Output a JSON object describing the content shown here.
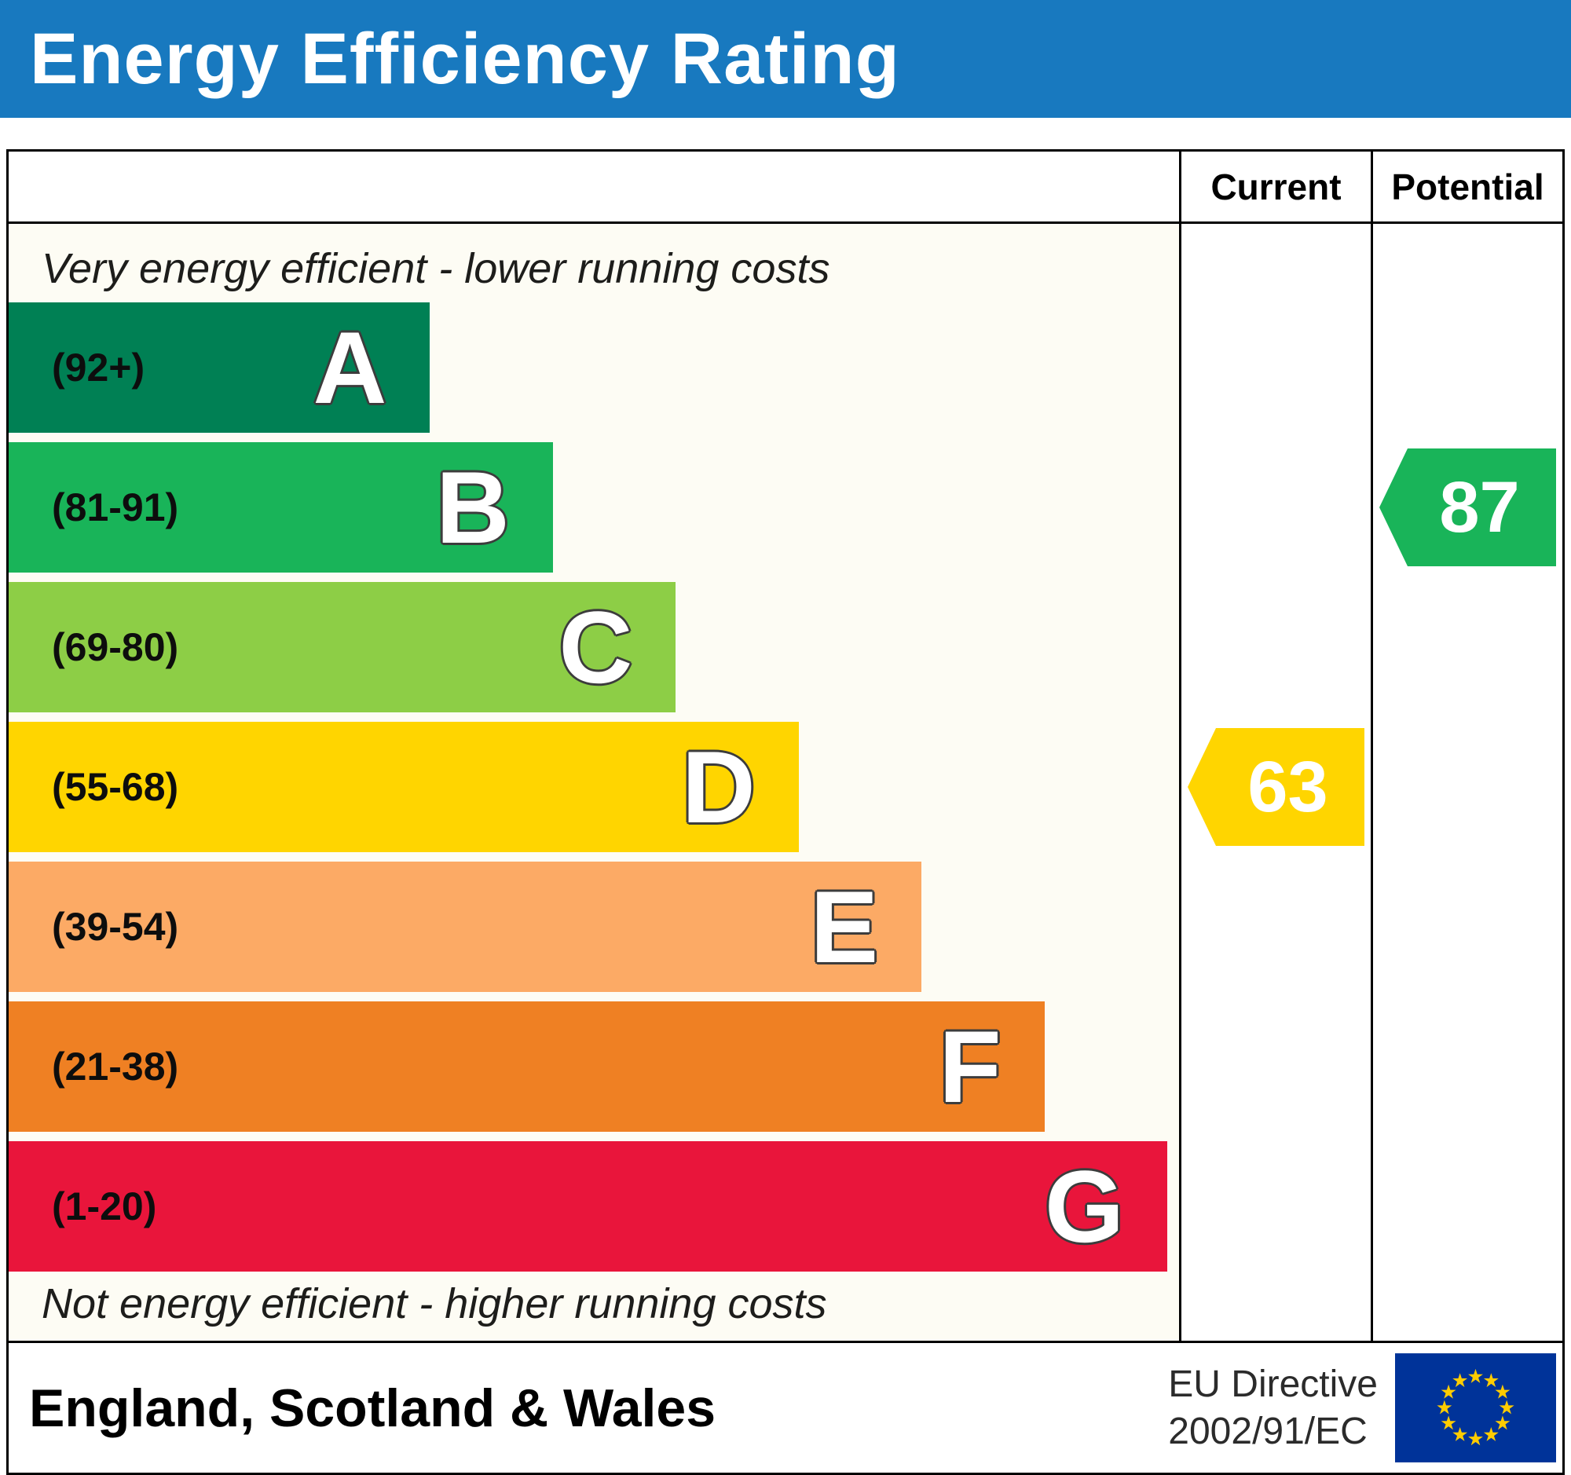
{
  "header": {
    "title": "Energy Efficiency Rating",
    "bg_color": "#1879bf",
    "text_color": "#ffffff"
  },
  "chart_data": {
    "type": "bar",
    "title": "Energy Efficiency Rating",
    "columns": {
      "current_label": "Current",
      "potential_label": "Potential"
    },
    "top_note": "Very energy efficient - lower running costs",
    "bottom_note": "Not energy efficient - higher running costs",
    "bands": [
      {
        "letter": "A",
        "range": "(92+)",
        "min": 92,
        "max": 100,
        "color": "#008054",
        "width_pct": 36
      },
      {
        "letter": "B",
        "range": "(81-91)",
        "min": 81,
        "max": 91,
        "color": "#19b459",
        "width_pct": 46.5
      },
      {
        "letter": "C",
        "range": "(69-80)",
        "min": 69,
        "max": 80,
        "color": "#8dce46",
        "width_pct": 57
      },
      {
        "letter": "D",
        "range": "(55-68)",
        "min": 55,
        "max": 68,
        "color": "#ffd500",
        "width_pct": 67.5
      },
      {
        "letter": "E",
        "range": "(39-54)",
        "min": 39,
        "max": 54,
        "color": "#fcaa65",
        "width_pct": 78
      },
      {
        "letter": "F",
        "range": "(21-38)",
        "min": 21,
        "max": 38,
        "color": "#ef8023",
        "width_pct": 88.5
      },
      {
        "letter": "G",
        "range": "(1-20)",
        "min": 1,
        "max": 20,
        "color": "#e9153b",
        "width_pct": 99
      }
    ],
    "current": {
      "label": "Current",
      "value": 63,
      "band": "D",
      "band_index": 3,
      "color": "#ffd500"
    },
    "potential": {
      "label": "Potential",
      "value": 87,
      "band": "B",
      "band_index": 1,
      "color": "#19b459"
    }
  },
  "footer": {
    "region": "England, Scotland & Wales",
    "directive_line1": "EU Directive",
    "directive_line2": "2002/91/EC",
    "eu_flag": {
      "bg": "#003399",
      "stars": "#ffcc00"
    }
  }
}
